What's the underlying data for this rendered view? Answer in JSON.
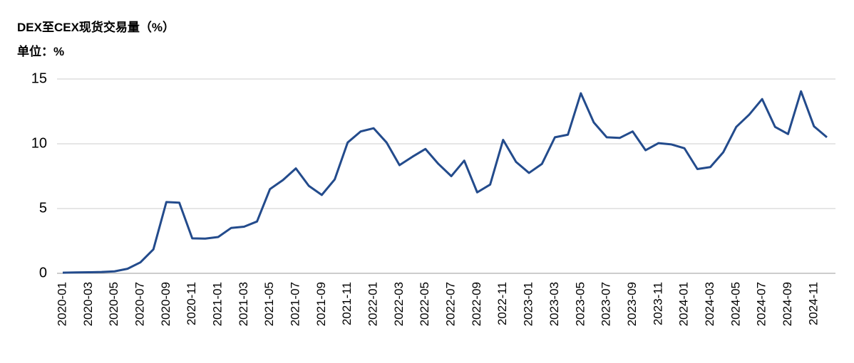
{
  "chart_data": {
    "type": "line",
    "title": "DEX至CEX现货交易量（%）",
    "subtitle": "单位：%",
    "categories": [
      "2020-01",
      null,
      "2020-03",
      null,
      "2020-05",
      null,
      "2020-07",
      null,
      "2020-09",
      null,
      "2020-11",
      null,
      "2021-01",
      null,
      "2021-03",
      null,
      "2021-05",
      null,
      "2021-07",
      null,
      "2021-09",
      null,
      "2021-11",
      null,
      "2022-01",
      null,
      "2022-03",
      null,
      "2022-05",
      null,
      "2022-07",
      null,
      "2022-09",
      null,
      "2022-11",
      null,
      "2023-01",
      null,
      "2023-03",
      null,
      "2023-05",
      null,
      "2023-07",
      null,
      "2023-09",
      null,
      "2023-11",
      null,
      "2024-01",
      null,
      "2024-03",
      null,
      "2024-05",
      null,
      "2024-07",
      null,
      "2024-09",
      null,
      "2024-11",
      null
    ],
    "series": [
      {
        "color": "#234b8c",
        "values": [
          0.05,
          0.07,
          0.08,
          0.1,
          0.15,
          0.35,
          0.85,
          1.85,
          5.5,
          5.45,
          2.7,
          2.68,
          2.8,
          3.5,
          3.6,
          4.0,
          6.5,
          7.2,
          8.1,
          6.75,
          6.05,
          7.25,
          10.1,
          10.95,
          11.2,
          10.1,
          8.35,
          9.0,
          9.6,
          8.45,
          7.5,
          8.7,
          6.25,
          6.85,
          10.3,
          8.6,
          7.75,
          8.45,
          10.5,
          10.7,
          13.9,
          11.65,
          10.5,
          10.45,
          10.95,
          9.5,
          10.05,
          9.95,
          9.65,
          8.05,
          8.2,
          9.35,
          11.3,
          12.25,
          13.45,
          11.3,
          10.75,
          14.05,
          11.35,
          10.5
        ]
      }
    ],
    "ylim": [
      0,
      15
    ],
    "yticks": [
      0,
      5,
      10,
      15
    ],
    "grid": true
  }
}
